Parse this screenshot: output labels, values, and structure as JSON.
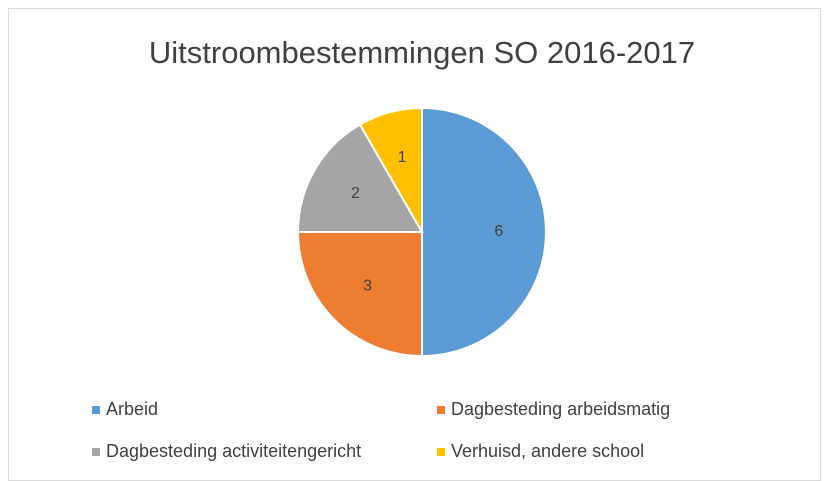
{
  "chart_data": {
    "type": "pie",
    "title": "Uitstroombestemmingen SO 2016-2017",
    "categories": [
      "Arbeid",
      "Dagbesteding arbeidsmatig",
      "Dagbesteding activiteitengericht",
      "Verhuisd, andere school"
    ],
    "values": [
      6,
      3,
      2,
      1
    ],
    "colors": [
      "#5b9bd5",
      "#ed7d31",
      "#a5a5a5",
      "#ffc000"
    ],
    "legend": "bottom"
  }
}
